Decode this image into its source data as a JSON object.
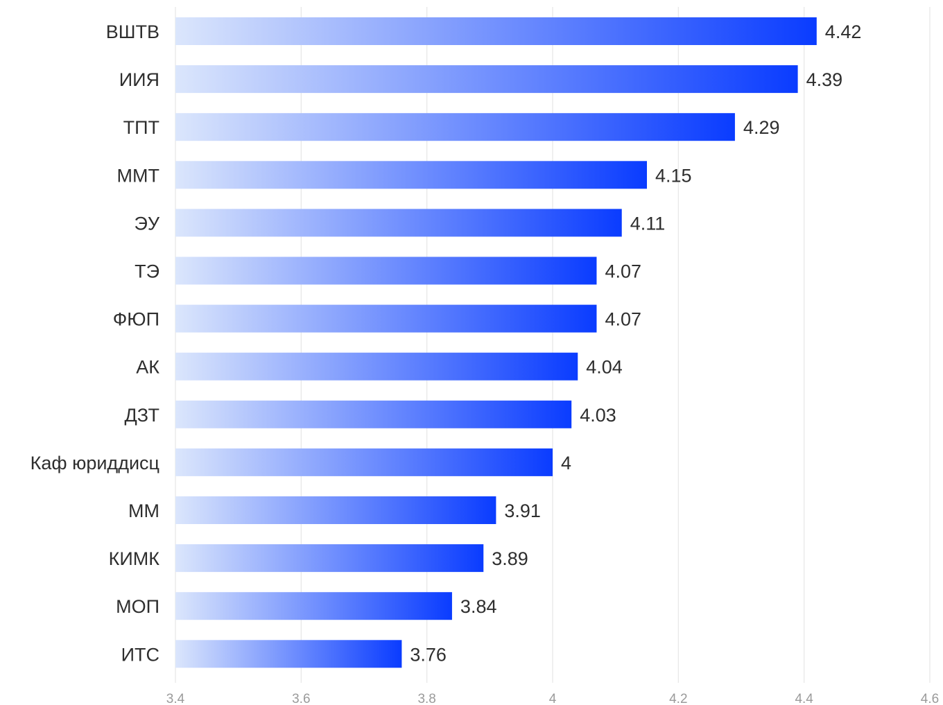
{
  "chart_data": {
    "type": "bar",
    "orientation": "horizontal",
    "categories": [
      "ВШТВ",
      "ИИЯ",
      "ТПТ",
      "ММТ",
      "ЭУ",
      "ТЭ",
      "ФЮП",
      "АК",
      "ДЗТ",
      "Каф юриддисц",
      "ММ",
      "КИМК",
      "МОП",
      "ИТС"
    ],
    "values": [
      4.42,
      4.39,
      4.29,
      4.15,
      4.11,
      4.07,
      4.07,
      4.04,
      4.03,
      4,
      3.91,
      3.89,
      3.84,
      3.76
    ],
    "value_labels": [
      "4.42",
      "4.39",
      "4.29",
      "4.15",
      "4.11",
      "4.07",
      "4.07",
      "4.04",
      "4.03",
      "4",
      "3.91",
      "3.89",
      "3.84",
      "3.76"
    ],
    "x_ticks": [
      "3.4",
      "3.6",
      "3.8",
      "4",
      "4.2",
      "4.4",
      "4.6"
    ],
    "xlim": [
      3.4,
      4.6
    ],
    "grid": true,
    "bar_gradient": [
      "#dbe6fc",
      "#0a3cff"
    ],
    "title": "",
    "xlabel": "",
    "ylabel": ""
  }
}
